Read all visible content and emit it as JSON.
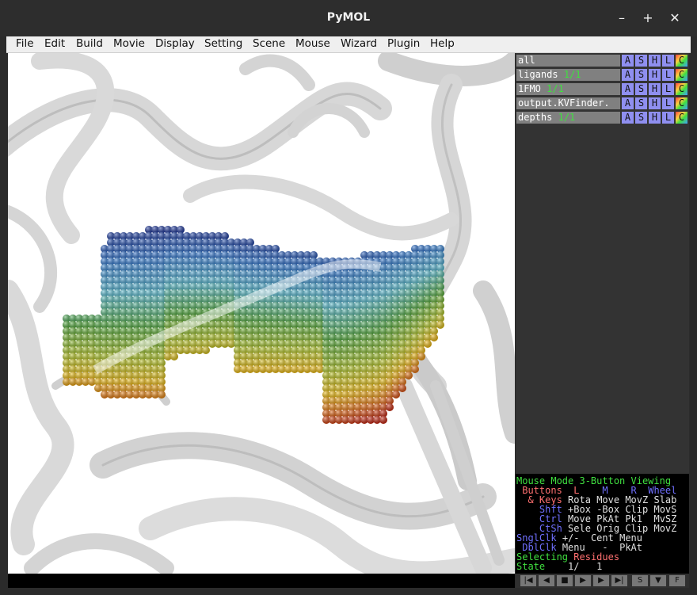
{
  "window": {
    "title": "PyMOL",
    "controls": {
      "minimize": "–",
      "maximize": "+",
      "close": "✕"
    }
  },
  "menu": [
    "File",
    "Edit",
    "Build",
    "Movie",
    "Display",
    "Setting",
    "Scene",
    "Mouse",
    "Wizard",
    "Plugin",
    "Help"
  ],
  "objects": [
    {
      "name": "all",
      "state": ""
    },
    {
      "name": "ligands",
      "state": "1/1"
    },
    {
      "name": "1FMO",
      "state": "1/1"
    },
    {
      "name": "output.KVFinder.",
      "state": ""
    },
    {
      "name": "depths",
      "state": "1/1"
    }
  ],
  "object_buttons": [
    "A",
    "S",
    "H",
    "L",
    "C"
  ],
  "mouse_info": {
    "mode_label": "Mouse Mode",
    "mode_value": "3-Button Viewing",
    "buttons_label": "Buttons",
    "cols": [
      "L",
      "M",
      "R",
      "Wheel"
    ],
    "rows": [
      {
        "key": "& Keys",
        "vals": [
          "Rota",
          "Move",
          "MovZ",
          "Slab"
        ]
      },
      {
        "key": "Shft",
        "vals": [
          "+Box",
          "-Box",
          "Clip",
          "MovS"
        ]
      },
      {
        "key": "Ctrl",
        "vals": [
          "Move",
          "PkAt",
          "Pk1",
          "MvSZ"
        ]
      },
      {
        "key": "CtSh",
        "vals": [
          "Sele",
          "Orig",
          "Clip",
          "MovZ"
        ]
      },
      {
        "key": "SnglClk",
        "vals": [
          "+/-",
          "Cent",
          "Menu",
          ""
        ]
      },
      {
        "key": "DblClk",
        "vals": [
          "Menu",
          "-",
          "PkAt",
          ""
        ]
      }
    ],
    "selecting_label": "Selecting",
    "selecting_value": "Residues",
    "state_label": "State",
    "state_value": "1/",
    "state_total": "1"
  },
  "movie_controls": [
    "|◀",
    "◀",
    "■",
    "▶",
    "▶",
    "▶|",
    "S",
    "▼",
    "F"
  ],
  "colors": {
    "panel_bg": "#333333",
    "obj_name_bg": "#808080",
    "state_green": "#3fe03f",
    "btn_blue": "#8f8ff0"
  }
}
